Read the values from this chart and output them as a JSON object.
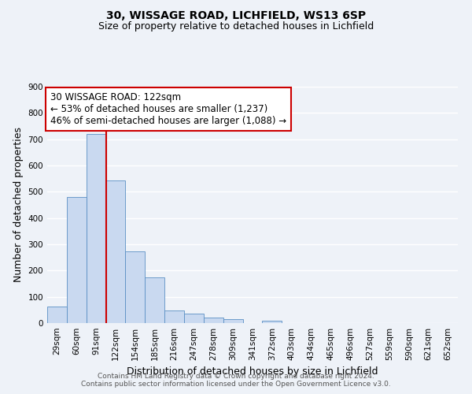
{
  "title_line1": "30, WISSAGE ROAD, LICHFIELD, WS13 6SP",
  "title_line2": "Size of property relative to detached houses in Lichfield",
  "xlabel": "Distribution of detached houses by size in Lichfield",
  "ylabel": "Number of detached properties",
  "bin_labels": [
    "29sqm",
    "60sqm",
    "91sqm",
    "122sqm",
    "154sqm",
    "185sqm",
    "216sqm",
    "247sqm",
    "278sqm",
    "309sqm",
    "341sqm",
    "372sqm",
    "403sqm",
    "434sqm",
    "465sqm",
    "496sqm",
    "527sqm",
    "559sqm",
    "590sqm",
    "621sqm",
    "652sqm"
  ],
  "bin_values": [
    62,
    480,
    720,
    543,
    272,
    173,
    48,
    35,
    20,
    15,
    0,
    8,
    0,
    0,
    0,
    0,
    0,
    0,
    0,
    0,
    0
  ],
  "bar_color": "#c9d9f0",
  "bar_edge_color": "#5a8fc4",
  "vline_x": 3.0,
  "vline_color": "#cc0000",
  "annotation_text": "30 WISSAGE ROAD: 122sqm\n← 53% of detached houses are smaller (1,237)\n46% of semi-detached houses are larger (1,088) →",
  "annotation_box_color": "#ffffff",
  "annotation_box_edge_color": "#cc0000",
  "ylim": [
    0,
    900
  ],
  "yticks": [
    0,
    100,
    200,
    300,
    400,
    500,
    600,
    700,
    800,
    900
  ],
  "footer_line1": "Contains HM Land Registry data © Crown copyright and database right 2024.",
  "footer_line2": "Contains public sector information licensed under the Open Government Licence v3.0.",
  "background_color": "#eef2f8",
  "grid_color": "#ffffff",
  "title_fontsize": 10,
  "subtitle_fontsize": 9,
  "axis_label_fontsize": 9,
  "tick_fontsize": 7.5,
  "annotation_fontsize": 8.5,
  "footer_fontsize": 6.5
}
